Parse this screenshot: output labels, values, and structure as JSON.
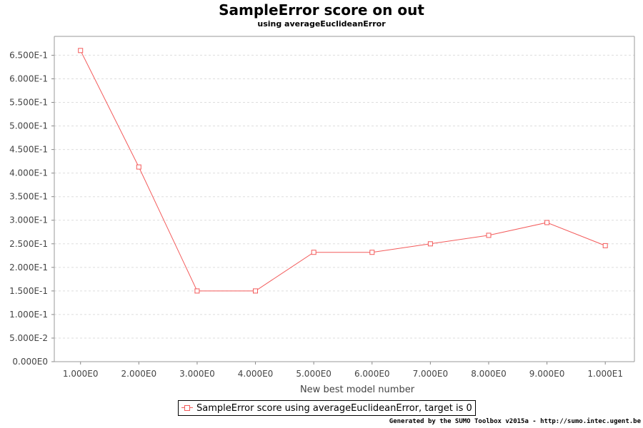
{
  "chart_data": {
    "type": "line",
    "title": "SampleError score on out",
    "subtitle": "using averageEuclideanError",
    "xlabel": "New best model number",
    "ylabel": "",
    "x": [
      1,
      2,
      3,
      4,
      5,
      6,
      7,
      8,
      9,
      10
    ],
    "xlim": [
      0.55,
      10.5
    ],
    "ylim": [
      0,
      0.69
    ],
    "x_ticks": [
      1,
      2,
      3,
      4,
      5,
      6,
      7,
      8,
      9,
      10
    ],
    "x_tick_labels": [
      "1.000E0",
      "2.000E0",
      "3.000E0",
      "4.000E0",
      "5.000E0",
      "6.000E0",
      "7.000E0",
      "8.000E0",
      "9.000E0",
      "1.000E1"
    ],
    "y_ticks": [
      0,
      0.05,
      0.1,
      0.15,
      0.2,
      0.25,
      0.3,
      0.35,
      0.4,
      0.45,
      0.5,
      0.55,
      0.6,
      0.65
    ],
    "y_tick_labels": [
      "0.000E0",
      "5.000E-2",
      "1.000E-1",
      "1.500E-1",
      "2.000E-1",
      "2.500E-1",
      "3.000E-1",
      "3.500E-1",
      "4.000E-1",
      "4.500E-1",
      "5.000E-1",
      "5.500E-1",
      "6.000E-1",
      "6.500E-1"
    ],
    "grid": true,
    "legend_position": "bottom",
    "series": [
      {
        "name": "SampleError score using averageEuclideanError, target is 0",
        "color": "#f35b5b",
        "marker": "hollow-square",
        "values": [
          0.66,
          0.413,
          0.15,
          0.15,
          0.232,
          0.232,
          0.25,
          0.268,
          0.295,
          0.246
        ]
      }
    ]
  },
  "colors": {
    "grid": "#dddddd",
    "axis": "#888888",
    "plot_border": "#9a9a9a"
  },
  "footer": {
    "credit": "Generated by the SUMO Toolbox v2015a - http://sumo.intec.ugent.be"
  }
}
